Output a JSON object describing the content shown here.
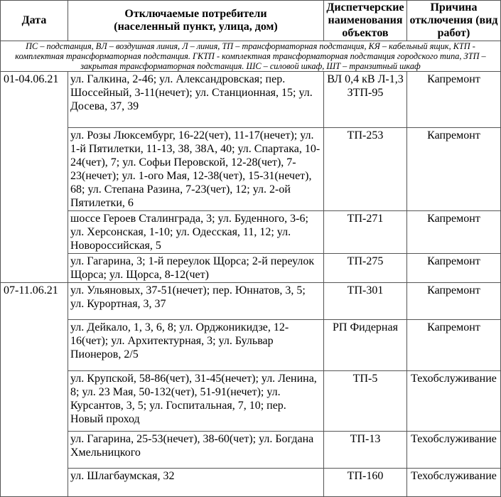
{
  "header": {
    "date": "Дата",
    "consumers_line1": "Отключаемые потребители",
    "consumers_line2": "(населенный пункт, улица, дом)",
    "dispatch": "Диспетчерские наименования объектов",
    "reason": "Причина отключения (вид работ)"
  },
  "legend": "ПС – подстанция, ВЛ – воздушная линия, Л – линия, ТП – трансформаторная подстанция, КЯ – кабельный ящик, КТП - комплектная трансформаторная подстанция. ГКТП - комплектная трансформаторная подстанция городского типа, ЗТП – закрытая трансформаторная подстанция. ШС – силовой шкаф, ШТ – транзитный шкаф",
  "groups": [
    {
      "date": "01-04.06.21",
      "rows": [
        {
          "consumers": "ул. Галкина, 2-46; ул. Александровская; пер. Шоссейный, 3-11(нечет); ул. Станционная, 15; ул. Досева, 37, 39",
          "dispatch": "ВЛ 0,4 кВ Л-1,3 ЗТП-95",
          "reason": "Капремонт"
        },
        {
          "consumers": "ул. Розы Люксембург, 16-22(чет), 11-17(нечет); ул. 1-й Пятилетки, 11-13, 38, 38А, 40; ул. Спартака, 10-24(чет), 7; ул. Софьи Перовской, 12-28(чет), 7-23(нечет); ул. 1-ого Мая, 12-38(чет), 15-31(нечет), 68; ул. Степана Разина, 7-23(чет), 12; ул. 2-ой Пятилетки, 6",
          "dispatch": "ТП-253",
          "reason": "Капремонт"
        },
        {
          "consumers": "шоссе Героев Сталинграда, 3; ул. Буденного, 3-6; ул. Херсонская, 1-10; ул. Одесская, 11, 12; ул. Новороссийская, 5",
          "dispatch": "ТП-271",
          "reason": "Капремонт"
        },
        {
          "consumers": "ул. Гагарина, 3; 1-й переулок Щорса; 2-й переулок Щорса; ул. Щорса, 8-12(чет)",
          "dispatch": "ТП-275",
          "reason": "Капремонт"
        }
      ]
    },
    {
      "date": "07-11.06.21",
      "rows": [
        {
          "consumers": "ул. Ульяновых, 37-51(нечет); пер. Юннатов, 3, 5; ул. Курортная, 3, 37",
          "dispatch": "ТП-301",
          "reason": "Капремонт"
        },
        {
          "consumers": "ул. Дейкало, 1, 3, 6, 8; ул. Орджоникидзе, 12-16(чет); ул. Архитектурная, 3; ул. Бульвар Пионеров, 2/5",
          "dispatch": "РП Фидерная",
          "reason": "Капремонт"
        },
        {
          "consumers": "ул. Крупской, 58-86(чет), 31-45(нечет); ул. Ленина, 8; ул. 23 Мая, 50-132(чет), 51-91(нечет); ул. Курсантов, 3, 5; ул. Госпитальная, 7, 10; пер. Новый проход",
          "dispatch": "ТП-5",
          "reason": "Техобслуживание"
        },
        {
          "consumers": "ул. Гагарина, 25-53(нечет), 38-60(чет); ул. Богдана Хмельницкого",
          "dispatch": "ТП-13",
          "reason": "Техобслуживание"
        },
        {
          "consumers": "ул. Шлагбаумская, 32",
          "dispatch": "ТП-160",
          "reason": "Техобслуживание"
        }
      ]
    }
  ]
}
